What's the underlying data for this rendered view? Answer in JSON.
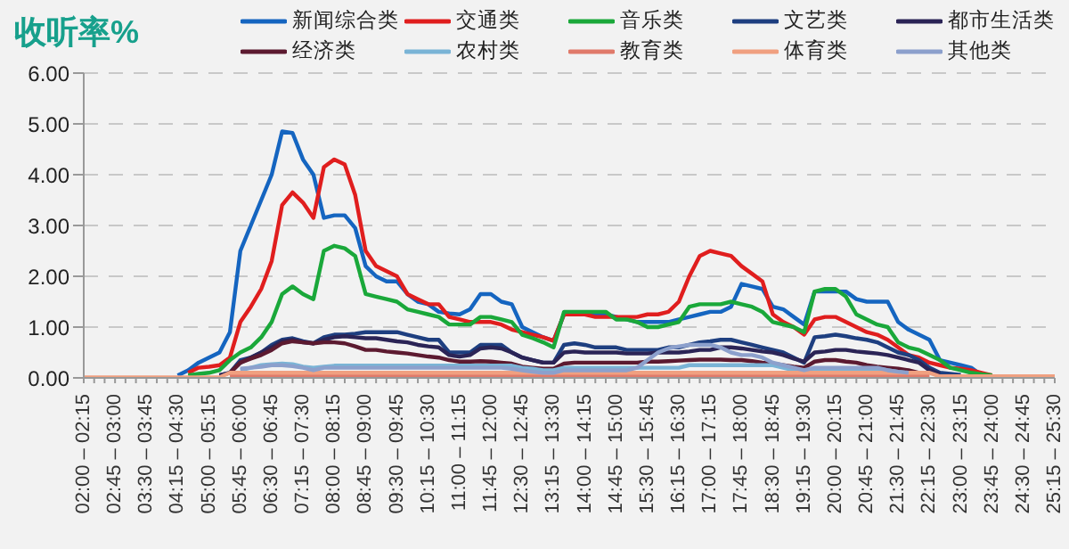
{
  "chart_data": {
    "type": "line",
    "title": "收听率%",
    "marker": "none",
    "grid": "y",
    "legend": "top right",
    "ylim": [
      0,
      6
    ],
    "yticks": [
      {
        "value": 0,
        "label": "0.00"
      },
      {
        "value": 1,
        "label": "1.00"
      },
      {
        "value": 2,
        "label": "2.00"
      },
      {
        "value": 3,
        "label": "3.00"
      },
      {
        "value": 4,
        "label": "4.00"
      },
      {
        "value": 5,
        "label": "5.00"
      },
      {
        "value": 6,
        "label": "6.00"
      }
    ],
    "categories": [
      "02:00 – 02:15",
      null,
      null,
      "02:45 – 03:00",
      null,
      null,
      "03:30 – 03:45",
      null,
      null,
      "04:15 – 04:30",
      null,
      null,
      "05:00 – 05:15",
      null,
      null,
      "05:45 – 06:00",
      null,
      null,
      "06:30 – 06:45",
      null,
      null,
      "07:15 – 07:30",
      null,
      null,
      "08:00 – 08:15",
      null,
      null,
      "08:45 – 09:00",
      null,
      null,
      "09:30 – 09:45",
      null,
      null,
      "10:15 – 10:30",
      null,
      null,
      "11:00 – 11:15",
      null,
      null,
      "11:45 – 12:00",
      null,
      null,
      "12:30 – 12:45",
      null,
      null,
      "13:15 – 13:30",
      null,
      null,
      "14:00 – 14:15",
      null,
      null,
      "14:45 – 15:00",
      null,
      null,
      "15:30 – 15:45",
      null,
      null,
      "16:15 – 16:30",
      null,
      null,
      "17:00 – 17:15",
      null,
      null,
      "17:45 – 18:00",
      null,
      null,
      "18:30 – 18:45",
      null,
      null,
      "19:15 – 19:30",
      null,
      null,
      "20:00 – 20:15",
      null,
      null,
      "20:45 – 21:00",
      null,
      null,
      "21:30 – 21:45",
      null,
      null,
      "22:15 – 22:30",
      null,
      null,
      "23:00 – 23:15",
      null,
      null,
      "23:45 – 24:00",
      null,
      null,
      "24:30 – 24:45",
      null,
      null,
      "25:15 – 25:30"
    ],
    "series": [
      {
        "name": "新闻综合类",
        "color": "#1565c0",
        "values": [
          null,
          null,
          null,
          null,
          null,
          null,
          null,
          null,
          null,
          0.05,
          0.15,
          0.3,
          0.4,
          0.5,
          0.9,
          2.5,
          3.0,
          3.5,
          4.0,
          4.85,
          4.82,
          4.3,
          4.0,
          3.15,
          3.2,
          3.2,
          2.95,
          2.2,
          2.0,
          1.9,
          1.9,
          1.65,
          1.5,
          1.45,
          1.3,
          1.27,
          1.25,
          1.35,
          1.65,
          1.65,
          1.5,
          1.45,
          1.0,
          0.9,
          0.8,
          0.73,
          1.25,
          1.25,
          1.25,
          1.25,
          1.25,
          1.2,
          1.15,
          1.1,
          1.1,
          1.1,
          1.1,
          1.15,
          1.2,
          1.25,
          1.3,
          1.3,
          1.4,
          1.85,
          1.8,
          1.75,
          1.4,
          1.35,
          1.2,
          1.05,
          1.7,
          1.7,
          1.7,
          1.7,
          1.55,
          1.5,
          1.5,
          1.5,
          1.1,
          0.95,
          0.85,
          0.75,
          0.35,
          0.3,
          0.25,
          0.2,
          0.05,
          null,
          null,
          null,
          null,
          null,
          null,
          null
        ]
      },
      {
        "name": "交通类",
        "color": "#e01e1e",
        "values": [
          null,
          null,
          null,
          null,
          null,
          null,
          null,
          null,
          null,
          null,
          0.1,
          0.2,
          0.22,
          0.25,
          0.4,
          1.1,
          1.4,
          1.75,
          2.3,
          3.4,
          3.65,
          3.45,
          3.15,
          4.15,
          4.3,
          4.2,
          3.6,
          2.5,
          2.2,
          2.1,
          2.0,
          1.65,
          1.55,
          1.45,
          1.45,
          1.2,
          1.15,
          1.1,
          1.1,
          1.1,
          1.05,
          0.95,
          0.9,
          0.85,
          0.8,
          0.73,
          1.25,
          1.25,
          1.25,
          1.2,
          1.2,
          1.2,
          1.2,
          1.2,
          1.25,
          1.25,
          1.3,
          1.5,
          2.0,
          2.4,
          2.5,
          2.45,
          2.4,
          2.2,
          2.05,
          1.9,
          1.25,
          1.1,
          1.0,
          0.85,
          1.15,
          1.2,
          1.2,
          1.1,
          1.0,
          0.9,
          0.85,
          0.75,
          0.6,
          0.45,
          0.4,
          0.3,
          0.25,
          0.2,
          0.18,
          0.15,
          0.1,
          0.05,
          null,
          null,
          null,
          null,
          null,
          null
        ]
      },
      {
        "name": "音乐类",
        "color": "#1aa83a",
        "values": [
          null,
          null,
          null,
          null,
          null,
          null,
          null,
          null,
          null,
          null,
          0.05,
          0.08,
          0.1,
          0.15,
          0.35,
          0.5,
          0.6,
          0.8,
          1.1,
          1.65,
          1.8,
          1.65,
          1.55,
          2.5,
          2.6,
          2.55,
          2.4,
          1.65,
          1.6,
          1.55,
          1.5,
          1.35,
          1.3,
          1.25,
          1.2,
          1.05,
          1.05,
          1.05,
          1.2,
          1.2,
          1.15,
          1.1,
          0.85,
          0.78,
          0.7,
          0.6,
          1.3,
          1.3,
          1.3,
          1.3,
          1.3,
          1.15,
          1.15,
          1.1,
          1.0,
          1.0,
          1.05,
          1.1,
          1.4,
          1.45,
          1.45,
          1.45,
          1.5,
          1.45,
          1.4,
          1.3,
          1.1,
          1.05,
          1.0,
          0.9,
          1.7,
          1.75,
          1.75,
          1.6,
          1.25,
          1.15,
          1.05,
          1.0,
          0.7,
          0.6,
          0.55,
          0.45,
          0.35,
          0.2,
          0.15,
          0.1,
          0.07,
          0.05,
          null,
          null,
          null,
          null,
          null,
          null
        ]
      },
      {
        "name": "文艺类",
        "color": "#1e3f80",
        "values": [
          null,
          null,
          null,
          null,
          null,
          null,
          null,
          null,
          null,
          null,
          null,
          null,
          null,
          0.05,
          0.1,
          0.35,
          0.4,
          0.5,
          0.65,
          0.75,
          0.78,
          0.72,
          0.68,
          0.8,
          0.85,
          0.85,
          0.87,
          0.9,
          0.9,
          0.9,
          0.9,
          0.85,
          0.8,
          0.75,
          0.75,
          0.5,
          0.5,
          0.5,
          0.65,
          0.65,
          0.65,
          0.5,
          0.4,
          0.35,
          0.3,
          0.3,
          0.65,
          0.68,
          0.65,
          0.6,
          0.6,
          0.6,
          0.55,
          0.55,
          0.55,
          0.55,
          0.6,
          0.6,
          0.65,
          0.7,
          0.72,
          0.75,
          0.75,
          0.7,
          0.65,
          0.6,
          0.55,
          0.5,
          0.4,
          0.3,
          0.8,
          0.82,
          0.85,
          0.82,
          0.78,
          0.75,
          0.7,
          0.6,
          0.5,
          0.45,
          0.35,
          0.2,
          0.1,
          0.08,
          0.06,
          null,
          null,
          null,
          null,
          null,
          null,
          null,
          null,
          null
        ]
      },
      {
        "name": "都市生活类",
        "color": "#2b2456",
        "values": [
          null,
          null,
          null,
          null,
          null,
          null,
          null,
          null,
          null,
          null,
          null,
          null,
          null,
          0.05,
          0.1,
          0.3,
          0.4,
          0.5,
          0.6,
          0.72,
          0.75,
          0.7,
          0.68,
          0.75,
          0.8,
          0.82,
          0.8,
          0.78,
          0.78,
          0.75,
          0.72,
          0.7,
          0.65,
          0.62,
          0.6,
          0.45,
          0.42,
          0.45,
          0.58,
          0.6,
          0.58,
          0.5,
          0.4,
          0.35,
          0.3,
          0.3,
          0.5,
          0.52,
          0.5,
          0.5,
          0.5,
          0.5,
          0.48,
          0.48,
          0.48,
          0.5,
          0.5,
          0.5,
          0.52,
          0.55,
          0.55,
          0.6,
          0.6,
          0.58,
          0.55,
          0.52,
          0.5,
          0.45,
          0.38,
          0.32,
          0.5,
          0.52,
          0.55,
          0.55,
          0.52,
          0.5,
          0.48,
          0.45,
          0.4,
          0.35,
          0.3,
          0.15,
          0.08,
          null,
          null,
          null,
          null,
          null,
          null,
          null,
          null,
          null,
          null,
          null
        ]
      },
      {
        "name": "经济类",
        "color": "#5c1a30",
        "values": [
          null,
          null,
          null,
          null,
          null,
          null,
          null,
          null,
          null,
          null,
          null,
          null,
          null,
          null,
          0.1,
          0.3,
          0.38,
          0.45,
          0.55,
          0.68,
          0.72,
          0.7,
          0.68,
          0.7,
          0.7,
          0.68,
          0.62,
          0.55,
          0.55,
          0.52,
          0.5,
          0.48,
          0.45,
          0.42,
          0.4,
          0.35,
          0.32,
          0.32,
          0.33,
          0.32,
          0.3,
          0.28,
          0.22,
          0.2,
          0.18,
          0.18,
          0.28,
          0.3,
          0.3,
          0.3,
          0.3,
          0.3,
          0.3,
          0.3,
          0.32,
          0.32,
          0.33,
          0.34,
          0.35,
          0.36,
          0.36,
          0.36,
          0.35,
          0.35,
          0.33,
          0.3,
          0.28,
          0.25,
          0.22,
          0.2,
          0.32,
          0.35,
          0.35,
          0.32,
          0.3,
          0.25,
          0.22,
          0.2,
          0.18,
          0.15,
          0.1,
          null,
          null,
          null,
          null,
          null,
          null,
          null,
          null,
          null,
          null,
          null,
          null,
          null
        ]
      },
      {
        "name": "农村类",
        "color": "#7ab4d6",
        "values": [
          null,
          null,
          null,
          null,
          null,
          null,
          null,
          null,
          null,
          null,
          null,
          null,
          null,
          null,
          null,
          0.15,
          0.2,
          0.25,
          0.27,
          0.28,
          0.27,
          0.22,
          0.2,
          0.22,
          0.24,
          0.24,
          0.24,
          0.24,
          0.24,
          0.24,
          0.24,
          0.24,
          0.24,
          0.24,
          0.24,
          0.24,
          0.24,
          0.24,
          0.24,
          0.24,
          0.24,
          0.24,
          0.2,
          0.18,
          0.15,
          0.15,
          0.2,
          0.2,
          0.2,
          0.2,
          0.2,
          0.2,
          0.2,
          0.2,
          0.2,
          0.2,
          0.2,
          0.2,
          0.25,
          0.25,
          0.25,
          0.25,
          0.25,
          0.25,
          0.25,
          0.25,
          0.25,
          0.2,
          0.15,
          0.12,
          0.18,
          0.18,
          0.18,
          0.18,
          0.18,
          0.18,
          0.18,
          0.15,
          0.12,
          0.1,
          null,
          null,
          null,
          null,
          null,
          null,
          null,
          null,
          null,
          null,
          null,
          null,
          null,
          null
        ]
      },
      {
        "name": "教育类",
        "color": "#e07a6a",
        "values": [
          null,
          null,
          null,
          null,
          null,
          null,
          null,
          null,
          null,
          null,
          null,
          null,
          null,
          null,
          0.05,
          0.05,
          0.05,
          0.05,
          0.05,
          0.05,
          0.05,
          0.05,
          0.05,
          0.05,
          0.05,
          0.05,
          0.05,
          0.05,
          0.05,
          0.05,
          0.05,
          0.05,
          0.05,
          0.05,
          0.05,
          0.05,
          0.05,
          0.05,
          0.05,
          0.05,
          0.05,
          0.05,
          0.05,
          0.05,
          0.05,
          0.05,
          0.05,
          0.05,
          0.05,
          0.05,
          0.05,
          0.05,
          0.05,
          0.05,
          0.05,
          0.05,
          0.05,
          0.05,
          0.05,
          0.05,
          0.05,
          0.05,
          0.05,
          0.05,
          0.05,
          0.05,
          0.05,
          0.05,
          0.05,
          0.05,
          0.05,
          0.05,
          0.05,
          0.05,
          0.05,
          0.05,
          0.05,
          0.05,
          0.05,
          0.05,
          0.05,
          0.05,
          null,
          null,
          null,
          null,
          null,
          null,
          null,
          null,
          null,
          null,
          null,
          null
        ]
      },
      {
        "name": "体育类",
        "color": "#f0a080",
        "values": [
          0.01,
          0.01,
          0.01,
          0.01,
          0.01,
          0.01,
          0.01,
          0.01,
          0.01,
          0.01,
          0.01,
          0.01,
          0.01,
          0.01,
          0.1,
          0.1,
          0.1,
          0.1,
          0.1,
          0.1,
          0.1,
          0.1,
          0.1,
          0.1,
          0.1,
          0.1,
          0.1,
          0.1,
          0.1,
          0.1,
          0.1,
          0.1,
          0.1,
          0.1,
          0.1,
          0.1,
          0.1,
          0.1,
          0.1,
          0.1,
          0.1,
          0.1,
          0.1,
          0.1,
          0.1,
          0.1,
          0.1,
          0.1,
          0.1,
          0.1,
          0.1,
          0.1,
          0.1,
          0.1,
          0.1,
          0.1,
          0.1,
          0.1,
          0.1,
          0.1,
          0.1,
          0.1,
          0.1,
          0.1,
          0.1,
          0.1,
          0.1,
          0.1,
          0.1,
          0.1,
          0.1,
          0.1,
          0.1,
          0.1,
          0.1,
          0.1,
          0.1,
          0.1,
          0.1,
          0.1,
          0.1,
          0.1,
          0.03,
          0.03,
          0.03,
          0.03,
          0.03,
          0.03,
          0.03,
          0.03,
          0.03,
          0.03,
          0.03,
          0.03
        ]
      },
      {
        "name": "其他类",
        "color": "#8ca0cc",
        "values": [
          null,
          null,
          null,
          null,
          null,
          null,
          null,
          null,
          null,
          null,
          null,
          null,
          null,
          null,
          null,
          0.18,
          0.2,
          0.22,
          0.25,
          0.25,
          0.23,
          0.2,
          0.15,
          0.2,
          0.2,
          0.2,
          0.2,
          0.2,
          0.2,
          0.2,
          0.2,
          0.2,
          0.2,
          0.2,
          0.2,
          0.2,
          0.2,
          0.2,
          0.2,
          0.2,
          0.2,
          0.18,
          0.15,
          0.12,
          0.1,
          0.1,
          0.15,
          0.15,
          0.15,
          0.15,
          0.15,
          0.15,
          0.15,
          0.2,
          0.35,
          0.5,
          0.58,
          0.62,
          0.65,
          0.65,
          0.65,
          0.6,
          0.5,
          0.45,
          0.45,
          0.4,
          0.3,
          0.25,
          0.2,
          0.15,
          0.2,
          0.2,
          0.2,
          0.2,
          0.2,
          0.2,
          0.2,
          0.15,
          0.12,
          0.1,
          null,
          null,
          null,
          null,
          null,
          null,
          null,
          null,
          null,
          null,
          null,
          null,
          null,
          null
        ]
      }
    ]
  }
}
